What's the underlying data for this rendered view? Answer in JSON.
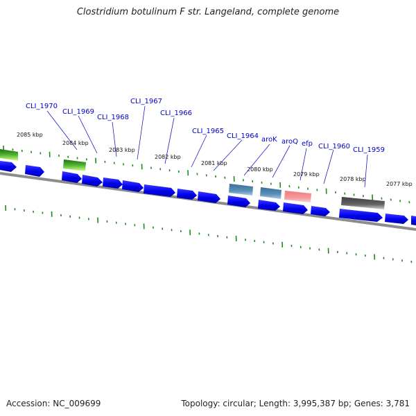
{
  "title": "Clostridium botulinum F str. Langeland, complete genome",
  "footer": {
    "accession": "Accession: NC_009699",
    "summary": "Topology: circular; Length: 3,995,387 bp; Genes: 3,781"
  },
  "colors": {
    "gene_blue": "#0000ee",
    "gene_green": "#2a8f1a",
    "gene_steel": "#4f86b0",
    "gene_pink": "#f08a8a",
    "gene_gray": "#606060",
    "tick_green": "#1a8a1a",
    "backbone": "#888888",
    "label_blue": "#0000c8"
  },
  "kbp_labels": [
    "2085 kbp",
    "2084 kbp",
    "2083 kbp",
    "2082 kbp",
    "2081 kbp",
    "2080 kbp",
    "2079 kbp",
    "2078 kbp",
    "2077 kbp"
  ],
  "gene_labels": [
    "CLI_1970",
    "CLI_1969",
    "CLI_1968",
    "CLI_1967",
    "CLI_1966",
    "CLI_1965",
    "CLI_1964",
    "aroK",
    "aroQ",
    "efp",
    "CLI_1960",
    "CLI_1959"
  ]
}
